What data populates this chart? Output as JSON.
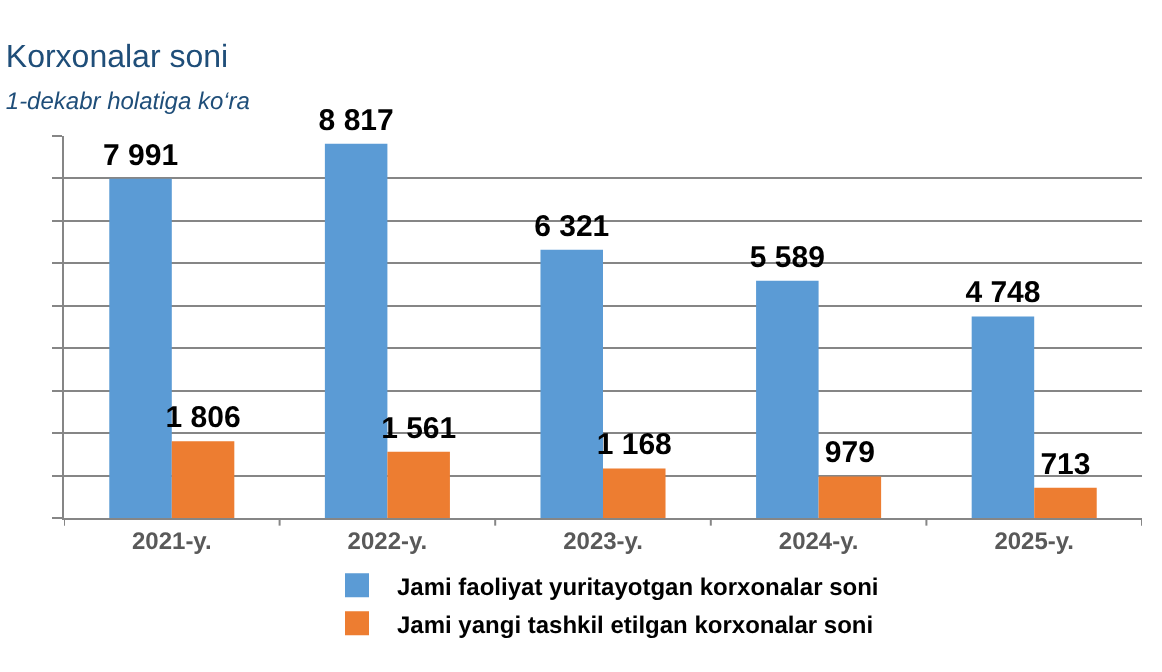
{
  "chart_data": {
    "type": "bar",
    "title": "Korxonalar soni",
    "subtitle": "1-dekabr holatiga ko‘ra",
    "categories": [
      "2021-y.",
      "2022-y.",
      "2023-y.",
      "2024-y.",
      "2025-y."
    ],
    "series": [
      {
        "name": "Jami faoliyat yuritayotgan korxonalar soni",
        "color": "#5b9bd5",
        "values": [
          7991,
          8817,
          6321,
          5589,
          4748
        ]
      },
      {
        "name": "Jami yangi tashkil etilgan korxonalar soni",
        "color": "#ed7d31",
        "values": [
          1806,
          1561,
          1168,
          979,
          713
        ]
      }
    ],
    "ylim": [
      0,
      9000
    ],
    "yticks": [
      {
        "value": 0,
        "label": null
      },
      {
        "value": 1000,
        "label": null
      },
      {
        "value": 2000,
        "label": null
      },
      {
        "value": 3000,
        "label": null
      },
      {
        "value": 4000,
        "label": null
      },
      {
        "value": 5000,
        "label": null
      },
      {
        "value": 6000,
        "label": null
      },
      {
        "value": 7000,
        "label": null
      },
      {
        "value": 8000,
        "label": null
      },
      {
        "value": 9000,
        "label": null
      }
    ],
    "tick_labels": "x",
    "data_labels": true,
    "grid": "y",
    "legend": "bottom"
  }
}
